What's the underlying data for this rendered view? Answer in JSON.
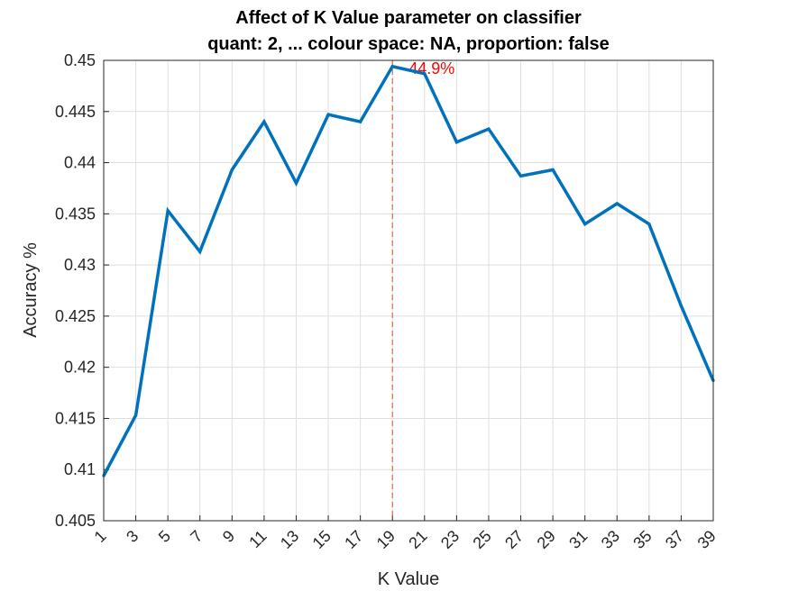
{
  "chart_data": {
    "type": "line",
    "title": "Affect of K Value parameter on classifier",
    "subtitle": "quant: 2, ... colour space: NA, proportion: false",
    "xlabel": "K Value",
    "ylabel": "Accuracy %",
    "x": [
      1,
      3,
      5,
      7,
      9,
      11,
      13,
      15,
      17,
      19,
      21,
      23,
      25,
      27,
      29,
      31,
      33,
      35,
      37,
      39
    ],
    "series": [
      {
        "values": [
          0.4094,
          0.4153,
          0.4353,
          0.4313,
          0.4393,
          0.444,
          0.438,
          0.4447,
          0.444,
          0.4494,
          0.4487,
          0.442,
          0.4433,
          0.4387,
          0.4393,
          0.434,
          0.436,
          0.434,
          0.426,
          0.4187
        ]
      }
    ],
    "xlim": [
      1,
      39
    ],
    "ylim": [
      0.405,
      0.45
    ],
    "xticks": [
      "1",
      "3",
      "5",
      "7",
      "9",
      "11",
      "13",
      "15",
      "17",
      "19",
      "21",
      "23",
      "25",
      "27",
      "29",
      "31",
      "33",
      "35",
      "37",
      "39"
    ],
    "yticks": [
      "0.405",
      "0.41",
      "0.415",
      "0.42",
      "0.425",
      "0.43",
      "0.435",
      "0.44",
      "0.445",
      "0.45"
    ],
    "grid": true,
    "annotation": {
      "text": "44.9%",
      "x": 19,
      "y": 0.4494
    },
    "colors": {
      "line": "#0072BD",
      "marker": "#D95319",
      "annotation": "#FF0000",
      "grid": "#DFDFDF",
      "axis": "#262626"
    }
  }
}
